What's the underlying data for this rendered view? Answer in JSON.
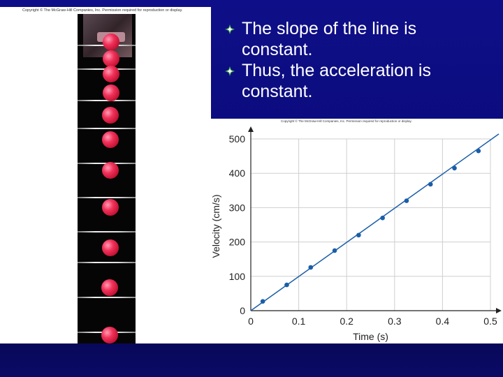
{
  "slide": {
    "bullets": [
      {
        "text": "The slope of the line is",
        "text2": "constant."
      },
      {
        "text": "Thus, the acceleration is",
        "text2": "constant."
      }
    ],
    "photo_copyright": "Copyright © The McGraw-Hill Companies, Inc. Permission required for reproduction or display.",
    "chart_copyright": "Copyright © The McGraw-Hill Companies, Inc. Permission required for reproduction or display.",
    "bullet_icon": "diamond-bullet-icon",
    "colors": {
      "background": "#0d0d80",
      "bullet": "#3fa34d",
      "line": "#1b5ea8",
      "ball": "#f0325a"
    }
  },
  "chart_data": {
    "type": "scatter",
    "title": "",
    "xlabel": "Time (s)",
    "ylabel": "Velocity (cm/s)",
    "xlim": [
      0,
      0.5
    ],
    "ylim": [
      0,
      500
    ],
    "xticks": [
      "0",
      "0.1",
      "0.2",
      "0.3",
      "0.4",
      "0.5"
    ],
    "yticks": [
      "0",
      "100",
      "200",
      "300",
      "400",
      "500"
    ],
    "grid": true,
    "fit_line": {
      "x": [
        0,
        0.5
      ],
      "y": [
        0,
        490
      ]
    },
    "series": [
      {
        "x": [
          0.025,
          0.075,
          0.125,
          0.175,
          0.225,
          0.275,
          0.325,
          0.375,
          0.425,
          0.475
        ],
        "y": [
          27,
          75,
          126,
          175,
          220,
          270,
          320,
          368,
          415,
          465
        ]
      }
    ]
  }
}
